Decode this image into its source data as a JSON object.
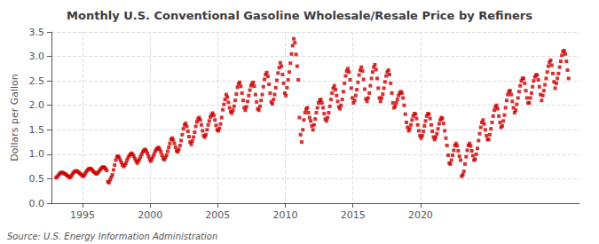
{
  "chart_data": {
    "type": "scatter",
    "title": "Monthly U.S. Conventional Gasoline Wholesale/Resale Price by Refiners",
    "ylabel": "Dollars per Gallon",
    "annotations": [
      "Source: U.S. Energy Information Administration"
    ],
    "color": "#CC0000",
    "marker": "square",
    "grid": true,
    "xlim": [
      1992.7,
      2031.758333
    ],
    "xticks": [
      1995,
      2000,
      2005,
      2010,
      2015,
      2020
    ],
    "ylim": [
      0.0,
      3.5
    ],
    "yticks": [
      {
        "value": 0.0,
        "label": "0.0"
      },
      0.5,
      {
        "value": 1.0,
        "label": "1.0"
      },
      1.5,
      {
        "value": 2.0,
        "label": "2.0"
      },
      2.5,
      {
        "value": 3.0,
        "label": "3.0"
      },
      3.5
    ],
    "x": [
      1993.041667,
      1993.125,
      1993.208333,
      1993.291667,
      1993.375,
      1993.458333,
      1993.541667,
      1993.625,
      1993.708333,
      1993.791667,
      1993.875,
      1993.958333,
      1994.041667,
      1994.125,
      1994.208333,
      1994.291667,
      1994.375,
      1994.458333,
      1994.541667,
      1994.625,
      1994.708333,
      1994.791667,
      1994.875,
      1994.958333,
      1995.041667,
      1995.125,
      1995.208333,
      1995.291667,
      1995.375,
      1995.458333,
      1995.541667,
      1995.625,
      1995.708333,
      1995.791667,
      1995.875,
      1995.958333,
      1996.041667,
      1996.125,
      1996.208333,
      1996.291667,
      1996.375,
      1996.458333,
      1996.541667,
      1996.625,
      1996.708333,
      1996.791667,
      1996.875,
      1996.958333,
      1997.041667,
      1997.125,
      1997.208333,
      1997.291667,
      1997.375,
      1997.458333,
      1997.541667,
      1997.625,
      1997.708333,
      1997.791667,
      1997.875,
      1997.958333,
      1998.041667,
      1998.125,
      1998.208333,
      1998.291667,
      1998.375,
      1998.458333,
      1998.541667,
      1998.625,
      1998.708333,
      1998.791667,
      1998.875,
      1998.958333,
      1999.041667,
      1999.125,
      1999.208333,
      1999.291667,
      1999.375,
      1999.458333,
      1999.541667,
      1999.625,
      1999.708333,
      1999.791667,
      1999.875,
      1999.958333,
      2000.041667,
      2000.125,
      2000.208333,
      2000.291667,
      2000.375,
      2000.458333,
      2000.541667,
      2000.625,
      2000.708333,
      2000.791667,
      2000.875,
      2000.958333,
      2001.041667,
      2001.125,
      2001.208333,
      2001.291667,
      2001.375,
      2001.458333,
      2001.541667,
      2001.625,
      2001.708333,
      2001.791667,
      2001.875,
      2001.958333,
      2002.041667,
      2002.125,
      2002.208333,
      2002.291667,
      2002.375,
      2002.458333,
      2002.541667,
      2002.625,
      2002.708333,
      2002.791667,
      2002.875,
      2002.958333,
      2003.041667,
      2003.125,
      2003.208333,
      2003.291667,
      2003.375,
      2003.458333,
      2003.541667,
      2003.625,
      2003.708333,
      2003.791667,
      2003.875,
      2003.958333,
      2004.041667,
      2004.125,
      2004.208333,
      2004.291667,
      2004.375,
      2004.458333,
      2004.541667,
      2004.625,
      2004.708333,
      2004.791667,
      2004.875,
      2004.958333,
      2005.041667,
      2005.125,
      2005.208333,
      2005.291667,
      2005.375,
      2005.458333,
      2005.541667,
      2005.625,
      2005.708333,
      2005.791667,
      2005.875,
      2005.958333,
      2006.041667,
      2006.125,
      2006.208333,
      2006.291667,
      2006.375,
      2006.458333,
      2006.541667,
      2006.625,
      2006.708333,
      2006.791667,
      2006.875,
      2006.958333,
      2007.041667,
      2007.125,
      2007.208333,
      2007.291667,
      2007.375,
      2007.458333,
      2007.541667,
      2007.625,
      2007.708333,
      2007.791667,
      2007.875,
      2007.958333,
      2008.041667,
      2008.125,
      2008.208333,
      2008.291667,
      2008.375,
      2008.458333,
      2008.541667,
      2008.625,
      2008.708333,
      2008.791667,
      2008.875,
      2008.958333,
      2009.041667,
      2009.125,
      2009.208333,
      2009.291667,
      2009.375,
      2009.458333,
      2009.541667,
      2009.625,
      2009.708333,
      2009.791667,
      2009.875,
      2009.958333,
      2010.041667,
      2010.125,
      2010.208333,
      2010.291667,
      2010.375,
      2010.458333,
      2010.541667,
      2010.625,
      2010.708333,
      2010.791667,
      2010.875,
      2010.958333,
      2011.041667,
      2011.125,
      2011.208333,
      2011.291667,
      2011.375,
      2011.458333,
      2011.541667,
      2011.625,
      2011.708333,
      2011.791667,
      2011.875,
      2011.958333,
      2012.041667,
      2012.125,
      2012.208333,
      2012.291667,
      2012.375,
      2012.458333,
      2012.541667,
      2012.625,
      2012.708333,
      2012.791667,
      2012.875,
      2012.958333,
      2013.041667,
      2013.125,
      2013.208333,
      2013.291667,
      2013.375,
      2013.458333,
      2013.541667,
      2013.625,
      2013.708333,
      2013.791667,
      2013.875,
      2013.958333,
      2014.041667,
      2014.125,
      2014.208333,
      2014.291667,
      2014.375,
      2014.458333,
      2014.541667,
      2014.625,
      2014.708333,
      2014.791667,
      2014.875,
      2014.958333,
      2015.041667,
      2015.125,
      2015.208333,
      2015.291667,
      2015.375,
      2015.458333,
      2015.541667,
      2015.625,
      2015.708333,
      2015.791667,
      2015.875,
      2015.958333,
      2016.041667,
      2016.125,
      2016.208333,
      2016.291667,
      2016.375,
      2016.458333,
      2016.541667,
      2016.625,
      2016.708333,
      2016.791667,
      2016.875,
      2016.958333,
      2017.041667,
      2017.125,
      2017.208333,
      2017.291667,
      2017.375,
      2017.458333,
      2017.541667,
      2017.625,
      2017.708333,
      2017.791667,
      2017.875,
      2017.958333,
      2018.041667,
      2018.125,
      2018.208333,
      2018.291667,
      2018.375,
      2018.458333,
      2018.541667,
      2018.625,
      2018.708333,
      2018.791667,
      2018.875,
      2018.958333,
      2019.041667,
      2019.125,
      2019.208333,
      2019.291667,
      2019.375,
      2019.458333,
      2019.541667,
      2019.625,
      2019.708333,
      2019.791667,
      2019.875,
      2019.958333,
      2020.041667,
      2020.125,
      2020.208333,
      2020.291667,
      2020.375,
      2020.458333,
      2020.541667,
      2020.625,
      2020.708333,
      2020.791667,
      2020.875,
      2020.958333,
      2021.041667,
      2021.125,
      2021.208333,
      2021.291667,
      2021.375,
      2021.458333,
      2021.541667,
      2021.625,
      2021.708333,
      2021.791667,
      2021.875,
      2021.958333,
      2022.041667,
      2022.125,
      2022.208333,
      2022.291667,
      2022.375,
      2022.458333,
      2022.541667,
      2022.625,
      2022.708333,
      2022.791667,
      2022.875,
      2022.958333,
      2023.041667,
      2023.125,
      2023.208333,
      2023.291667,
      2023.375,
      2023.458333,
      2023.541667,
      2023.625,
      2023.708333,
      2023.791667,
      2023.875,
      2023.958333,
      2024.041667,
      2024.125,
      2024.208333,
      2024.291667,
      2024.375,
      2024.458333,
      2024.541667,
      2024.625,
      2024.708333,
      2024.791667,
      2024.875,
      2024.958333,
      2025.041667,
      2025.125,
      2025.208333,
      2025.291667,
      2025.375,
      2025.458333,
      2025.541667,
      2025.625,
      2025.708333,
      2025.791667,
      2025.875,
      2025.958333,
      2026.041667,
      2026.125,
      2026.208333,
      2026.291667,
      2026.375,
      2026.458333,
      2026.541667,
      2026.625,
      2026.708333,
      2026.791667,
      2026.875,
      2026.958333,
      2027.041667,
      2027.125,
      2027.208333,
      2027.291667,
      2027.375,
      2027.458333,
      2027.541667,
      2027.625,
      2027.708333,
      2027.791667,
      2027.875,
      2027.958333,
      2028.041667,
      2028.125,
      2028.208333,
      2028.291667,
      2028.375,
      2028.458333,
      2028.541667,
      2028.625,
      2028.708333,
      2028.791667,
      2028.875,
      2028.958333,
      2029.041667,
      2029.125,
      2029.208333,
      2029.291667,
      2029.375,
      2029.458333,
      2029.541667,
      2029.625,
      2029.708333,
      2029.791667,
      2029.875,
      2029.958333,
      2030.041667,
      2030.125,
      2030.208333,
      2030.291667,
      2030.375,
      2030.458333,
      2030.541667,
      2030.625,
      2030.708333,
      2030.791667,
      2030.875,
      2030.958333
    ],
    "values": [
      0.52,
      0.54,
      0.57,
      0.6,
      0.62,
      0.63,
      0.62,
      0.61,
      0.6,
      0.58,
      0.56,
      0.55,
      0.52,
      0.54,
      0.57,
      0.61,
      0.64,
      0.65,
      0.66,
      0.65,
      0.63,
      0.61,
      0.59,
      0.57,
      0.55,
      0.57,
      0.61,
      0.65,
      0.68,
      0.7,
      0.71,
      0.7,
      0.68,
      0.65,
      0.63,
      0.61,
      0.6,
      0.62,
      0.65,
      0.68,
      0.71,
      0.73,
      0.74,
      0.73,
      0.7,
      0.67,
      0.44,
      0.42,
      0.48,
      0.53,
      0.58,
      0.68,
      0.78,
      0.88,
      0.95,
      0.96,
      0.93,
      0.88,
      0.83,
      0.78,
      0.75,
      0.78,
      0.82,
      0.88,
      0.93,
      0.97,
      1.0,
      1.02,
      1.0,
      0.96,
      0.91,
      0.86,
      0.82,
      0.86,
      0.9,
      0.95,
      1.0,
      1.05,
      1.08,
      1.1,
      1.07,
      1.02,
      0.96,
      0.9,
      0.86,
      0.9,
      0.95,
      1.0,
      1.06,
      1.1,
      1.12,
      1.14,
      1.1,
      1.05,
      0.98,
      0.92,
      0.89,
      0.93,
      0.98,
      1.06,
      1.14,
      1.22,
      1.3,
      1.33,
      1.29,
      1.22,
      1.14,
      1.07,
      1.05,
      1.1,
      1.18,
      1.28,
      1.4,
      1.52,
      1.6,
      1.63,
      1.57,
      1.47,
      1.36,
      1.25,
      1.2,
      1.27,
      1.35,
      1.45,
      1.57,
      1.66,
      1.72,
      1.75,
      1.7,
      1.6,
      1.48,
      1.38,
      1.35,
      1.4,
      1.5,
      1.6,
      1.68,
      1.76,
      1.81,
      1.84,
      1.79,
      1.7,
      1.59,
      1.5,
      1.48,
      1.53,
      1.62,
      1.75,
      1.91,
      2.02,
      2.12,
      2.22,
      2.17,
      2.06,
      1.95,
      1.87,
      1.84,
      1.9,
      1.98,
      2.1,
      2.23,
      2.37,
      2.44,
      2.47,
      2.39,
      2.25,
      2.1,
      1.95,
      1.9,
      1.97,
      2.08,
      2.2,
      2.31,
      2.4,
      2.44,
      2.47,
      2.39,
      2.22,
      2.07,
      1.93,
      1.9,
      1.98,
      2.1,
      2.22,
      2.38,
      2.53,
      2.63,
      2.67,
      2.59,
      2.43,
      2.25,
      2.07,
      2.03,
      2.12,
      2.22,
      2.36,
      2.51,
      2.66,
      2.77,
      2.87,
      2.8,
      2.63,
      2.45,
      2.25,
      2.2,
      2.36,
      2.52,
      2.68,
      2.86,
      3.05,
      3.22,
      3.36,
      3.28,
      3.04,
      2.8,
      2.52,
      1.75,
      1.4,
      1.25,
      1.5,
      1.7,
      1.85,
      1.92,
      1.95,
      1.85,
      1.75,
      1.68,
      1.58,
      1.5,
      1.6,
      1.72,
      1.85,
      1.95,
      2.05,
      2.1,
      2.12,
      2.05,
      1.95,
      1.83,
      1.72,
      1.68,
      1.75,
      1.85,
      1.98,
      2.12,
      2.25,
      2.35,
      2.4,
      2.32,
      2.2,
      2.08,
      1.97,
      1.93,
      2.0,
      2.12,
      2.28,
      2.45,
      2.6,
      2.7,
      2.75,
      2.68,
      2.52,
      2.35,
      2.15,
      2.05,
      2.1,
      2.2,
      2.32,
      2.47,
      2.62,
      2.72,
      2.78,
      2.7,
      2.53,
      2.33,
      2.13,
      2.08,
      2.15,
      2.25,
      2.4,
      2.55,
      2.68,
      2.78,
      2.83,
      2.73,
      2.55,
      2.35,
      2.15,
      2.08,
      2.15,
      2.23,
      2.35,
      2.48,
      2.6,
      2.68,
      2.72,
      2.63,
      2.45,
      2.25,
      2.05,
      1.95,
      1.98,
      2.05,
      2.12,
      2.2,
      2.25,
      2.28,
      2.25,
      2.15,
      2.0,
      1.82,
      1.65,
      1.55,
      1.48,
      1.52,
      1.6,
      1.7,
      1.78,
      1.83,
      1.82,
      1.73,
      1.6,
      1.48,
      1.38,
      1.33,
      1.38,
      1.47,
      1.58,
      1.68,
      1.78,
      1.83,
      1.82,
      1.73,
      1.6,
      1.47,
      1.35,
      1.3,
      1.35,
      1.42,
      1.52,
      1.62,
      1.7,
      1.75,
      1.73,
      1.63,
      1.48,
      1.33,
      1.18,
      0.98,
      0.82,
      0.8,
      0.88,
      0.98,
      1.08,
      1.18,
      1.22,
      1.17,
      1.07,
      0.96,
      0.88,
      0.55,
      0.58,
      0.65,
      0.8,
      0.95,
      1.08,
      1.18,
      1.22,
      1.17,
      1.07,
      0.97,
      0.88,
      0.9,
      1.0,
      1.12,
      1.28,
      1.42,
      1.55,
      1.65,
      1.7,
      1.62,
      1.5,
      1.38,
      1.3,
      1.3,
      1.4,
      1.52,
      1.65,
      1.78,
      1.9,
      1.97,
      2.0,
      1.93,
      1.78,
      1.65,
      1.55,
      1.58,
      1.68,
      1.8,
      1.95,
      2.1,
      2.22,
      2.28,
      2.3,
      2.22,
      2.08,
      1.95,
      1.85,
      1.9,
      2.02,
      2.15,
      2.28,
      2.4,
      2.5,
      2.55,
      2.55,
      2.45,
      2.3,
      2.15,
      2.05,
      2.05,
      2.15,
      2.25,
      2.38,
      2.5,
      2.58,
      2.62,
      2.62,
      2.52,
      2.38,
      2.22,
      2.1,
      2.2,
      2.3,
      2.42,
      2.55,
      2.68,
      2.8,
      2.88,
      2.92,
      2.82,
      2.65,
      2.48,
      2.35,
      2.45,
      2.55,
      2.65,
      2.78,
      2.9,
      3.02,
      3.1,
      3.12,
      3.05,
      2.9,
      2.72,
      2.55
    ]
  }
}
